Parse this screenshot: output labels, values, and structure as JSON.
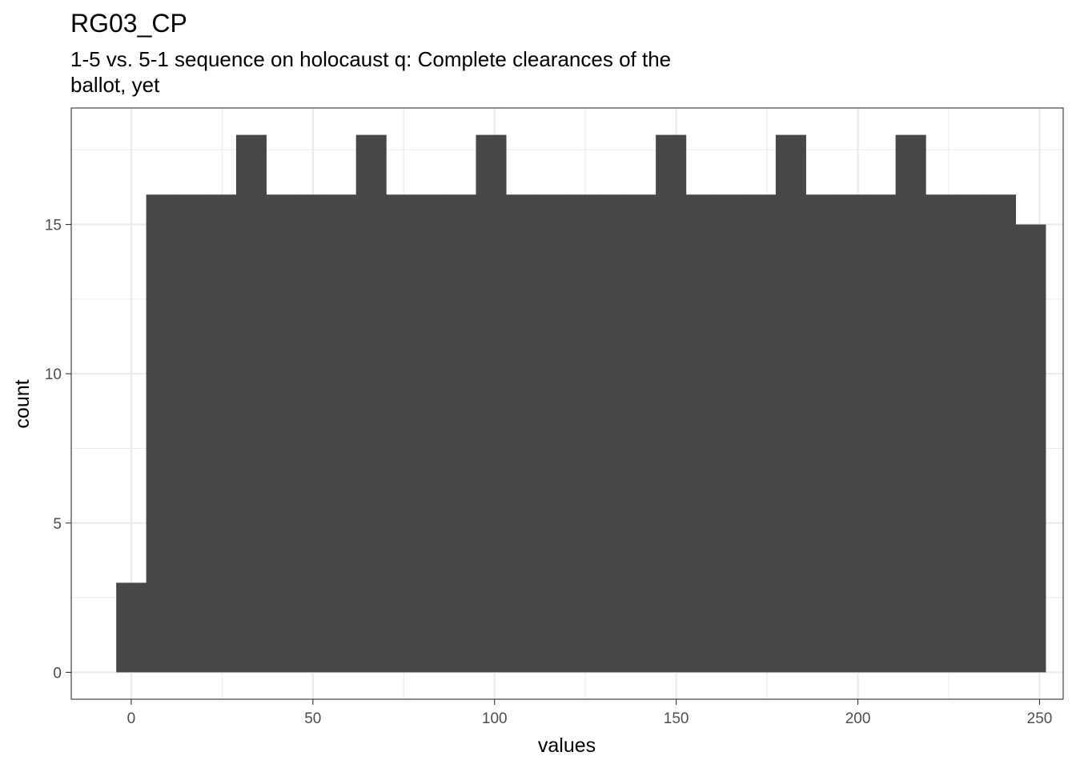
{
  "chart_data": {
    "type": "bar",
    "title": "RG03_CP",
    "subtitle_lines": [
      "1-5 vs. 5-1 sequence on holocaust q: Complete clearances of the",
      "ballot, yet"
    ],
    "xlabel": "values",
    "ylabel": "count",
    "xlim": [
      -16.5,
      256.5
    ],
    "ylim": [
      -0.9,
      18.9
    ],
    "x_ticks": [
      0,
      50,
      100,
      150,
      200,
      250
    ],
    "y_ticks": [
      0,
      5,
      10,
      15
    ],
    "bin_width": 8.25,
    "bin_start": -4.125,
    "values": [
      3,
      16,
      16,
      16,
      18,
      16,
      16,
      16,
      18,
      16,
      16,
      16,
      18,
      16,
      16,
      16,
      16,
      16,
      18,
      16,
      16,
      16,
      18,
      16,
      16,
      16,
      18,
      16,
      16,
      16,
      15
    ],
    "grid": true,
    "bar_color": "#474747",
    "grid_color": "#ebebeb",
    "panel_border_color": "#333333"
  }
}
